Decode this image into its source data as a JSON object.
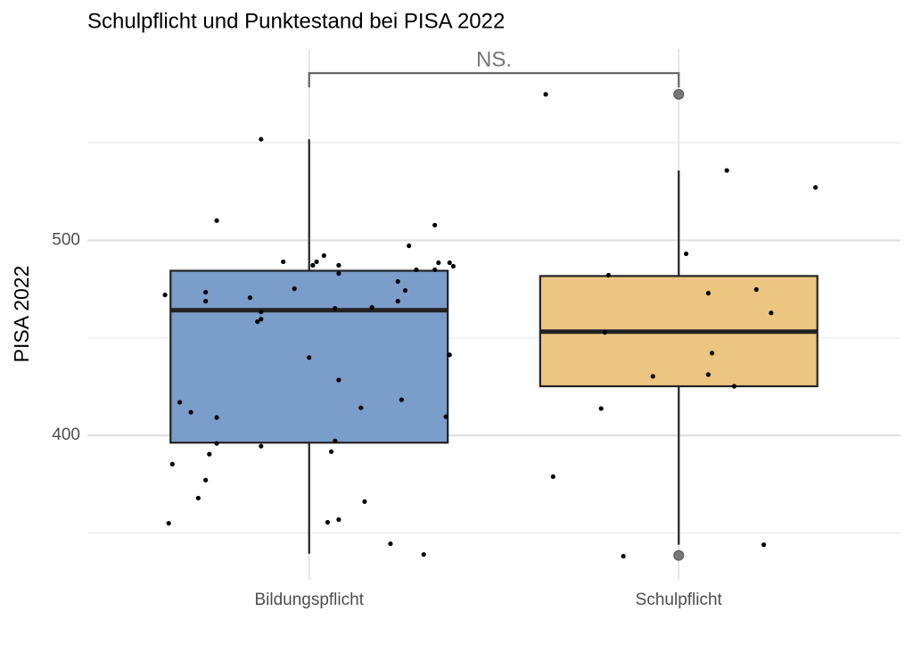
{
  "chart_data": {
    "type": "boxplot",
    "title": "Schulpflicht und Punktestand bei PISA 2022",
    "y_label": "PISA 2022",
    "categories": [
      "Bildungspflicht",
      "Schulpflicht"
    ],
    "ylim": [
      326,
      598
    ],
    "yticks": [
      400,
      500
    ],
    "minor_yticks": [
      350,
      450,
      550
    ],
    "xlim": [
      0.4,
      2.6
    ],
    "grid": true,
    "annotation": "NS.",
    "boxes": [
      {
        "color": "#7a9dca",
        "lower_whisker": 339.4,
        "q1": 396.3,
        "median": 464.2,
        "q3": 484.4,
        "upper_whisker": 551.8,
        "outliers": []
      },
      {
        "color": "#ecc681",
        "lower_whisker": 344,
        "q1": 425.2,
        "median": 453.2,
        "q3": 481.7,
        "upper_whisker": 535.8,
        "outliers": [
          574.8,
          338.5
        ]
      }
    ],
    "points": [
      {
        "x": [
          0.87,
          0.75,
          1.34,
          1.27,
          0.93,
          1.02,
          1.04,
          1.01,
          1.08,
          1.08,
          1.29,
          1.35,
          1.38,
          1.39,
          1.34,
          0.61,
          0.72,
          0.72,
          0.84,
          0.96,
          1.24,
          1.26,
          1.17,
          1.07,
          0.87,
          0.87,
          0.86,
          1.24,
          1.0,
          1.38,
          1.08,
          0.65,
          0.68,
          0.75,
          1.25,
          1.14,
          1.37,
          0.75,
          0.87,
          1.07,
          1.06,
          0.73,
          0.63,
          0.72,
          0.7,
          1.15,
          1.05,
          1.08,
          0.62,
          1.22,
          1.31
        ],
        "y": [
          551.8,
          510.1,
          507.8,
          497.2,
          489.0,
          489.0,
          492.2,
          487.2,
          487.2,
          483.0,
          484.9,
          488.5,
          488.5,
          486.7,
          484.9,
          472.0,
          473.4,
          468.8,
          470.6,
          475.2,
          478.9,
          474.3,
          465.6,
          465.1,
          463.3,
          459.6,
          458.3,
          468.8,
          439.9,
          441.3,
          428.4,
          417.0,
          411.9,
          409.2,
          418.3,
          414.2,
          409.6,
          395.9,
          394.5,
          397.2,
          391.7,
          390.4,
          385.3,
          377.1,
          367.9,
          366.1,
          355.5,
          356.9,
          355.0,
          344.5,
          339.0
        ]
      },
      {
        "x": [
          1.64,
          2.13,
          2.37,
          2.02,
          1.81,
          2.08,
          2.21,
          2.25,
          1.8,
          2.09,
          1.93,
          2.08,
          2.15,
          1.79,
          1.66,
          2.23,
          1.85
        ],
        "y": [
          574.8,
          535.8,
          527.1,
          493.1,
          482.1,
          472.9,
          474.8,
          462.8,
          452.8,
          442.2,
          430.3,
          431.2,
          425.2,
          413.8,
          378.9,
          344.0,
          338.1
        ]
      }
    ]
  }
}
